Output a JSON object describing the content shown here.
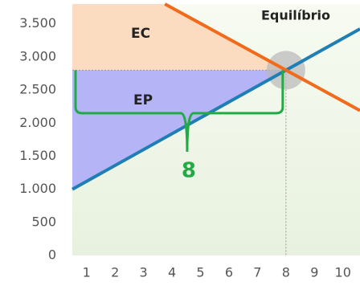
{
  "chart_data": {
    "type": "line",
    "xlim": [
      0.5,
      10.6
    ],
    "ylim": [
      0,
      3800
    ],
    "xticks": [
      1,
      2,
      3,
      4,
      5,
      6,
      7,
      8,
      9,
      10
    ],
    "yticks": [
      0,
      500,
      {
        "value": 1000,
        "label": "1.000"
      },
      {
        "value": 1500,
        "label": "1.500"
      },
      {
        "value": 2000,
        "label": "2.000"
      },
      {
        "value": 2500,
        "label": "2.500"
      },
      {
        "value": 3000,
        "label": "3.000"
      },
      {
        "value": 3500,
        "label": "3.500"
      }
    ],
    "series": [
      {
        "color": "#1f7fb4",
        "x": [
          0.5,
          10.6
        ],
        "values": [
          1000,
          3424
        ]
      },
      {
        "color": "#f26a1b",
        "x": [
          3.75,
          10.6
        ],
        "values": [
          3800,
          2190
        ]
      }
    ],
    "equilibrium": {
      "x": 8,
      "y": 2800
    },
    "consumer_surplus_label": "EC",
    "producer_surplus_label": "EP",
    "equilibrium_label": "Equilíbrio"
  }
}
